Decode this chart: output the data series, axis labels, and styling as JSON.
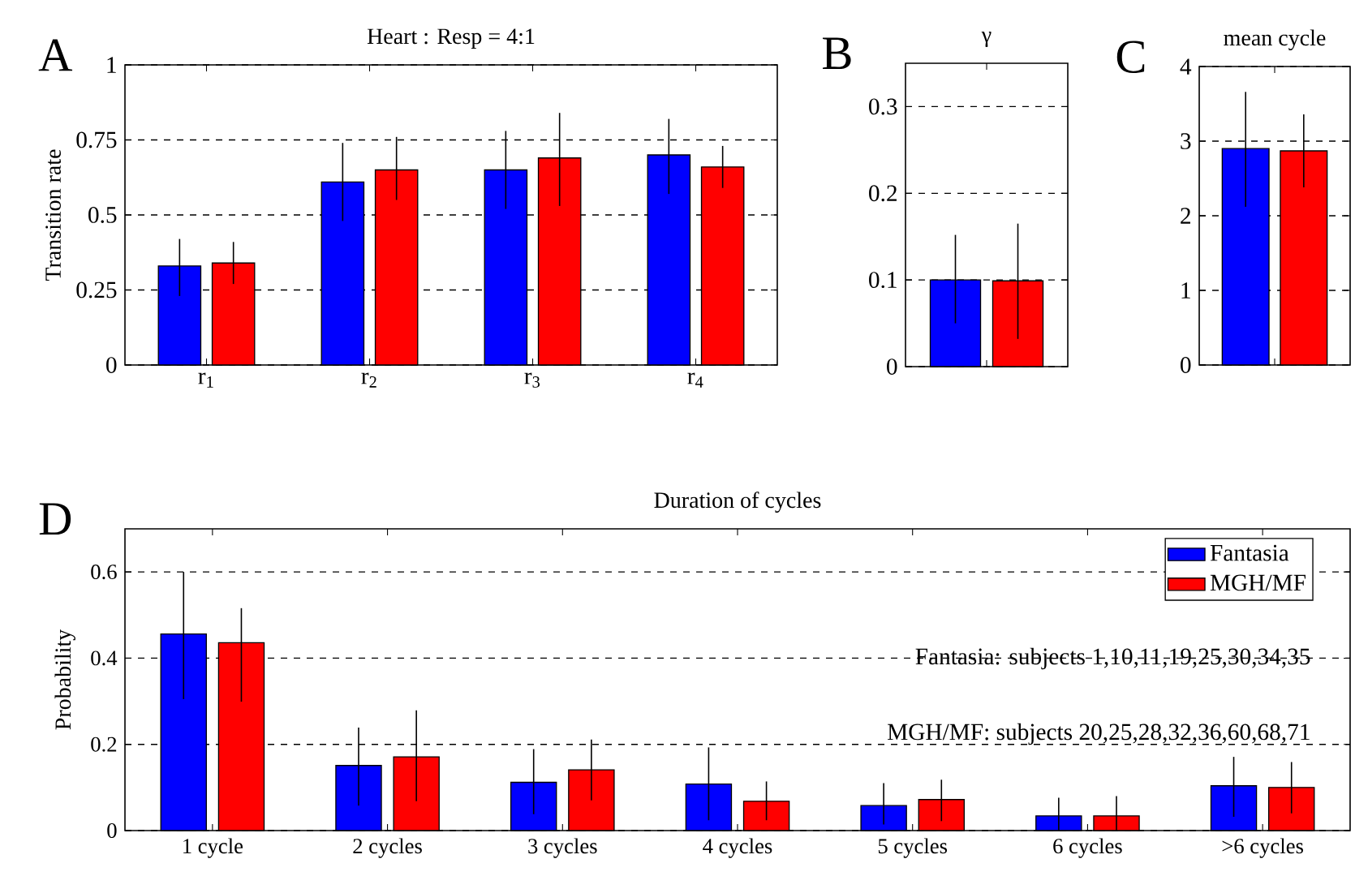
{
  "chart_data": [
    {
      "type": "bar",
      "title": "Heart : Resp = 4:1",
      "ylabel": "Transition rate",
      "annotations": [
        "A"
      ],
      "categories": [
        "r$_{1}$",
        "r$_{2}$",
        "r$_{3}$",
        "r$_{4}$"
      ],
      "series": [
        {
          "color": "#0000ff",
          "values": [
            0.33,
            0.61,
            0.65,
            0.7
          ],
          "errors": [
            [
              0.23,
              0.42
            ],
            [
              0.48,
              0.74
            ],
            [
              0.52,
              0.78
            ],
            [
              0.57,
              0.82
            ]
          ]
        },
        {
          "color": "#ff0000",
          "values": [
            0.34,
            0.65,
            0.69,
            0.66
          ],
          "errors": [
            [
              0.27,
              0.41
            ],
            [
              0.55,
              0.76
            ],
            [
              0.53,
              0.84
            ],
            [
              0.59,
              0.73
            ]
          ]
        }
      ],
      "ylim": [
        0,
        1
      ],
      "yticks": [
        0,
        0.25,
        0.5,
        0.75,
        1
      ],
      "grid": "y"
    },
    {
      "type": "bar",
      "title": "γ",
      "annotations": [
        "B"
      ],
      "categories": [
        null
      ],
      "series": [
        {
          "color": "#0000ff",
          "values": [
            0.1
          ],
          "errors": [
            [
              0.05,
              0.152
            ]
          ]
        },
        {
          "color": "#ff0000",
          "values": [
            0.099
          ],
          "errors": [
            [
              0.032,
              0.165
            ]
          ]
        }
      ],
      "ylim": [
        0,
        0.35
      ],
      "yticks": [
        0,
        0.1,
        0.2,
        0.3
      ],
      "grid": "y"
    },
    {
      "type": "bar",
      "title": "mean cycle",
      "annotations": [
        "C"
      ],
      "categories": [
        null
      ],
      "series": [
        {
          "color": "#0000ff",
          "values": [
            2.9
          ],
          "errors": [
            [
              2.12,
              3.66
            ]
          ]
        },
        {
          "color": "#ff0000",
          "values": [
            2.87
          ],
          "errors": [
            [
              2.38,
              3.36
            ]
          ]
        }
      ],
      "ylim": [
        0,
        4
      ],
      "yticks": [
        0,
        1,
        2,
        3,
        4
      ],
      "grid": "y"
    },
    {
      "type": "bar",
      "title": "Duration of cycles",
      "ylabel": "Probability",
      "annotations": [
        "D",
        "Fantasia: subjects 1,10,11,19,25,30,34,35",
        "MGH/MF: subjects 20,25,28,32,36,60,68,71"
      ],
      "categories": [
        "1 cycle",
        "2 cycles",
        "3 cycles",
        "4 cycles",
        "5 cycles",
        "6 cycles",
        ">6 cycles"
      ],
      "series": [
        {
          "name": "Fantasia",
          "color": "#0000ff",
          "values": [
            0.456,
            0.151,
            0.112,
            0.108,
            0.058,
            0.034,
            0.104
          ],
          "errors": [
            [
              0.305,
              0.6
            ],
            [
              0.058,
              0.239
            ],
            [
              0.038,
              0.189
            ],
            [
              0.024,
              0.193
            ],
            [
              0.014,
              0.11
            ],
            [
              0.0,
              0.076
            ],
            [
              0.032,
              0.171
            ]
          ]
        },
        {
          "name": "MGH/MF",
          "color": "#ff0000",
          "values": [
            0.436,
            0.171,
            0.141,
            0.068,
            0.072,
            0.034,
            0.1
          ],
          "errors": [
            [
              0.299,
              0.516
            ],
            [
              0.068,
              0.279
            ],
            [
              0.07,
              0.211
            ],
            [
              0.024,
              0.114
            ],
            [
              0.022,
              0.118
            ],
            [
              0.0,
              0.08
            ],
            [
              0.04,
              0.159
            ]
          ]
        }
      ],
      "ylim": [
        0,
        0.7
      ],
      "yticks": [
        0,
        0.2,
        0.4,
        0.6
      ],
      "grid": "y",
      "legend": "top right"
    }
  ]
}
